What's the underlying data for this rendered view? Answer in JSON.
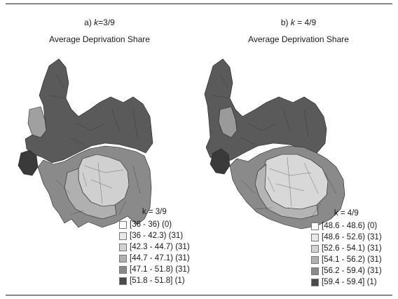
{
  "panels": [
    {
      "label_prefix": "a) ",
      "label_var": "k",
      "label_value": "=3/9",
      "title": "Average Deprivation Share",
      "legend": {
        "title": "k = 3/9",
        "items": [
          {
            "label": "[36 - 36) (0)",
            "color": "#ffffff"
          },
          {
            "label": "[36 - 42.3) (31)",
            "color": "#e8e8e8"
          },
          {
            "label": "[42.3 - 44.7) (31)",
            "color": "#d2d2d2"
          },
          {
            "label": "[44.7 - 47.1) (31)",
            "color": "#b0b0b0"
          },
          {
            "label": "[47.1 - 51.8) (31)",
            "color": "#8a8a8a"
          },
          {
            "label": "[51.8 - 51.8] (1)",
            "color": "#4a4a4a"
          }
        ]
      }
    },
    {
      "label_prefix": "b) ",
      "label_var": "k",
      "label_value": " = 4/9",
      "title": "Average Deprivation Share",
      "legend": {
        "title": "k = 4/9",
        "items": [
          {
            "label": "[48.6 - 48.6) (0)",
            "color": "#ffffff"
          },
          {
            "label": "[48.6 - 52.6) (31)",
            "color": "#e8e8e8"
          },
          {
            "label": "[52.6 - 54.1) (31)",
            "color": "#d2d2d2"
          },
          {
            "label": "[54.1 - 56.2) (31)",
            "color": "#b0b0b0"
          },
          {
            "label": "[56.2 - 59.4) (31)",
            "color": "#8a8a8a"
          },
          {
            "label": "[59.4 - 59.4] (1)",
            "color": "#4a4a4a"
          }
        ]
      }
    }
  ],
  "colors": {
    "map_dark": "#5a5a5a",
    "map_darkest": "#3a3a3a",
    "map_mid": "#8a8a8a",
    "map_light": "#d0d0d0",
    "border": "#222222"
  }
}
